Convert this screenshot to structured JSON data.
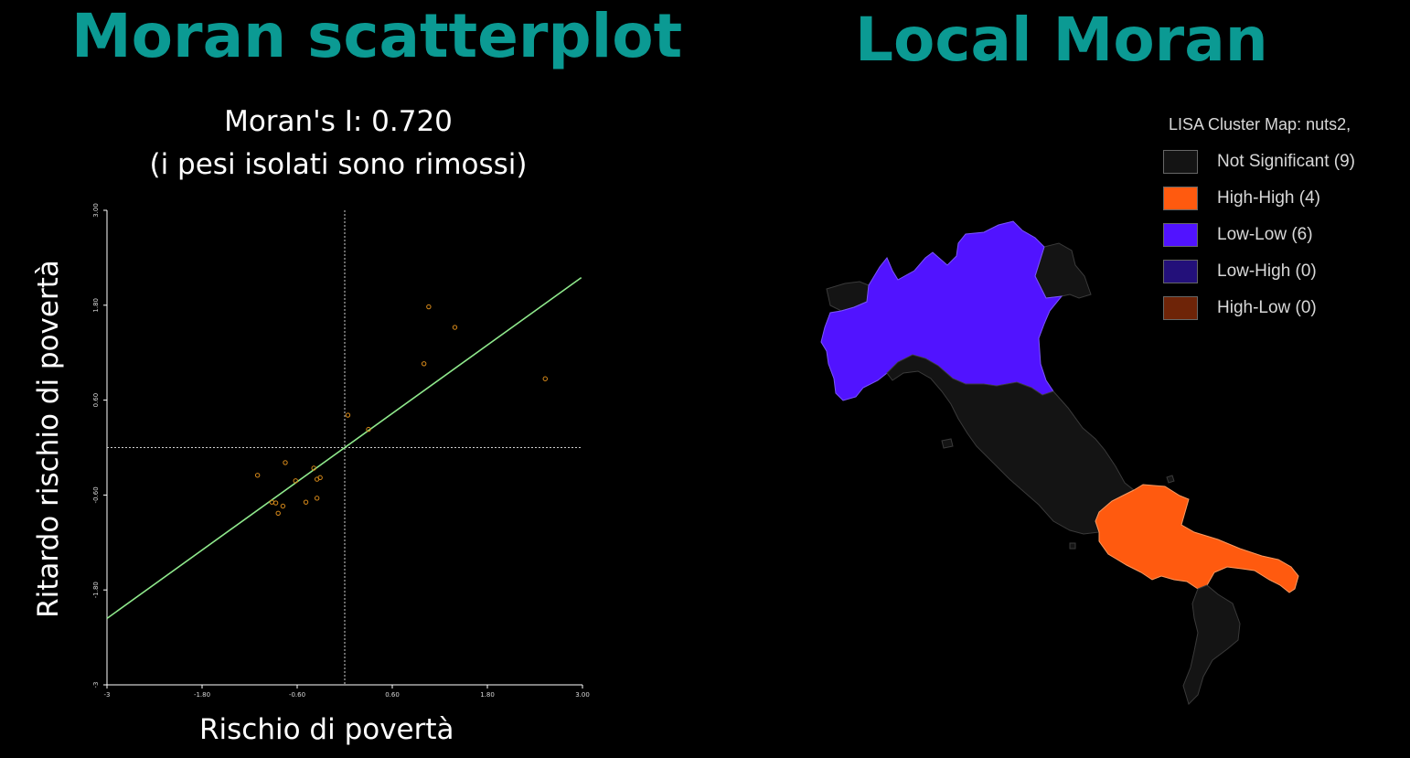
{
  "headings": {
    "left": "Moran scatterplot",
    "right": "Local Moran"
  },
  "chart_data": {
    "type": "scatter",
    "title": "Moran's I: 0.720",
    "subtitle": "(i pesi isolati sono rimossi)",
    "xlabel": "Rischio di povertà",
    "ylabel": "Ritardo rischio di povertà",
    "xlim": [
      -3,
      3
    ],
    "ylim": [
      -3,
      3
    ],
    "xticks": [
      "-3",
      "-1.80",
      "-0.60",
      "0.60",
      "1.80",
      "3.00"
    ],
    "yticks": [
      "-3",
      "-1.80",
      "-0.60",
      "0.60",
      "1.80",
      "3.00"
    ],
    "regression_slope": 0.72,
    "series": [
      {
        "x": [
          -1.1,
          -0.92,
          -0.87,
          -0.84,
          -0.78,
          -0.75,
          -0.62,
          -0.49,
          -0.35,
          -0.35,
          -0.31,
          -0.39,
          0.04,
          0.3,
          1.0,
          1.06,
          1.39,
          2.53
        ],
        "y": [
          -0.35,
          -0.69,
          -0.7,
          -0.83,
          -0.74,
          -0.19,
          -0.42,
          -0.69,
          -0.4,
          -0.64,
          -0.38,
          -0.26,
          0.41,
          0.23,
          1.06,
          1.78,
          1.52,
          0.87
        ]
      }
    ],
    "colors": {
      "points": "#d88a1a",
      "fit": "#8fe98c",
      "axis": "#ffffff"
    }
  },
  "map": {
    "legend_title": "LISA Cluster Map: nuts2,",
    "legend": [
      {
        "label": "Not Significant (9)",
        "color": "#141414"
      },
      {
        "label": "High-High (4)",
        "color": "#ff5a0f"
      },
      {
        "label": "Low-Low (6)",
        "color": "#5113ff"
      },
      {
        "label": "Low-High (0)",
        "color": "#23107a"
      },
      {
        "label": "High-Low (0)",
        "color": "#6e2408"
      }
    ]
  }
}
